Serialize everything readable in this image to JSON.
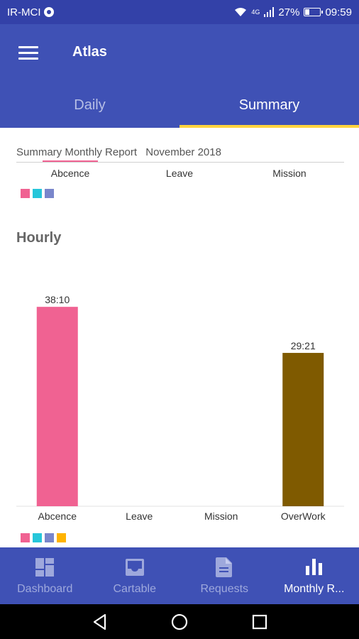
{
  "status_bar": {
    "carrier": "IR-MCI",
    "signal_tag": "4G",
    "battery": "27%",
    "battery_level": 0.27,
    "time": "09:59"
  },
  "app_bar": {
    "title": "Atlas",
    "tabs": [
      {
        "label": "Daily"
      },
      {
        "label": "Summary"
      }
    ]
  },
  "summary": {
    "subtitle": "Summary Monthly Report",
    "period": "November 2018",
    "top_categories": [
      "Abcence",
      "Leave",
      "Mission"
    ],
    "top_legend_colors": [
      "#f06292",
      "#26c6da",
      "#7986cb"
    ]
  },
  "hourly": {
    "title": "Hourly"
  },
  "chart_data": {
    "type": "bar",
    "categories": [
      "Abcence",
      "Leave",
      "Mission",
      "OverWork"
    ],
    "values": [
      38.1667,
      0,
      0,
      29.35
    ],
    "data_labels": [
      "38:10",
      "",
      "",
      "29:21"
    ],
    "colors": [
      "#f06292",
      "#26c6da",
      "#7986cb",
      "#7f5a00"
    ],
    "legend_colors": [
      "#f06292",
      "#26c6da",
      "#7986cb",
      "#ffb300"
    ],
    "ylim": [
      0,
      40.5
    ],
    "grid": false
  },
  "bottom_nav": {
    "items": [
      {
        "label": "Dashboard",
        "icon": "dashboard-icon"
      },
      {
        "label": "Cartable",
        "icon": "inbox-icon"
      },
      {
        "label": "Requests",
        "icon": "document-icon"
      },
      {
        "label": "Monthly R...",
        "icon": "bar-chart-icon",
        "active": true
      }
    ]
  },
  "colors": {
    "primary": "#3f51b5",
    "status": "#3341a8",
    "accent": "#ffd33d"
  }
}
